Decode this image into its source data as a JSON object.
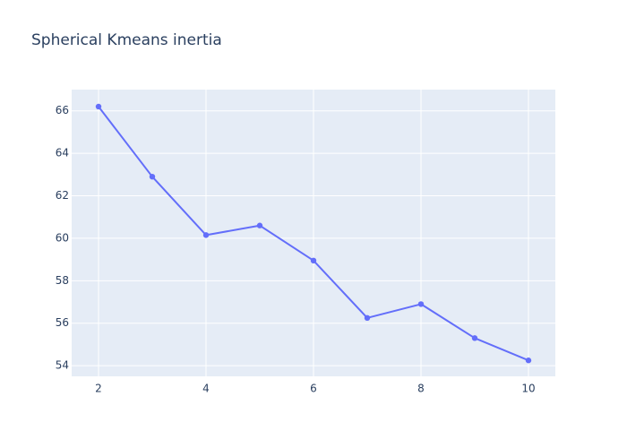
{
  "chart_data": {
    "type": "line",
    "title": "Spherical Kmeans inertia",
    "xlabel": "",
    "ylabel": "",
    "x": [
      2,
      3,
      4,
      5,
      6,
      7,
      8,
      9,
      10
    ],
    "series": [
      {
        "values": [
          66.2,
          62.9,
          60.15,
          60.6,
          58.95,
          56.25,
          56.9,
          55.3,
          54.25
        ]
      }
    ],
    "xlim": [
      1.5,
      10.5
    ],
    "ylim": [
      53.5,
      67.0
    ],
    "xticks": [
      2,
      4,
      6,
      8,
      10
    ],
    "yticks": [
      54,
      56,
      58,
      60,
      62,
      64,
      66
    ],
    "grid": true,
    "line_color": "#636efa",
    "plot_background": "#e5ecf6"
  }
}
